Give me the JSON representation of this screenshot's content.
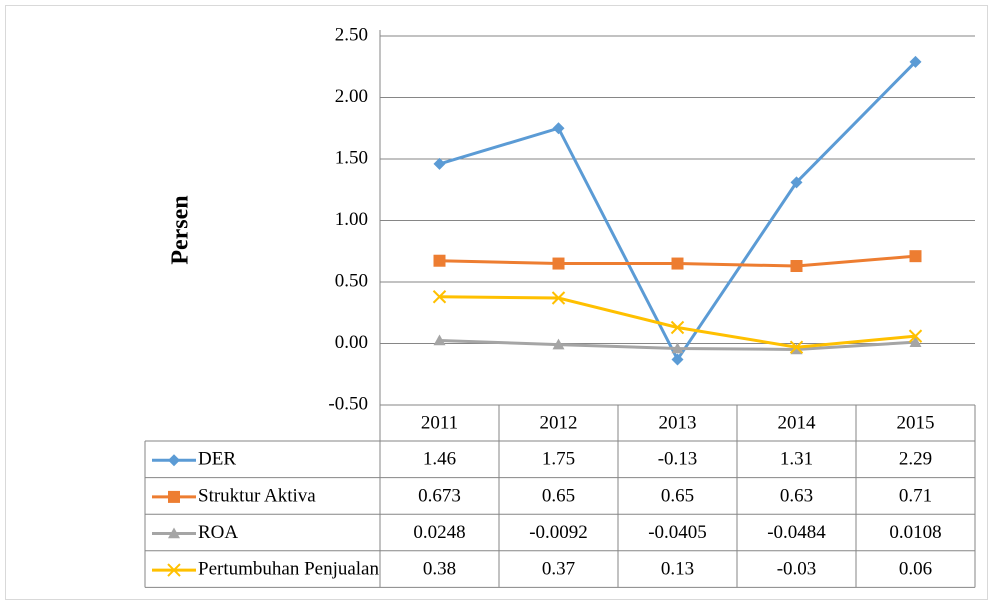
{
  "chart_data": {
    "type": "line",
    "y_label": "Persen",
    "categories": [
      "2011",
      "2012",
      "2013",
      "2014",
      "2015"
    ],
    "series": [
      {
        "name": "DER",
        "color": "#5b9bd5",
        "marker": "diamond",
        "values": [
          1.46,
          1.75,
          -0.13,
          1.31,
          2.29
        ]
      },
      {
        "name": "Struktur Aktiva",
        "color": "#ed7d31",
        "marker": "square",
        "values": [
          0.673,
          0.65,
          0.65,
          0.63,
          0.71
        ]
      },
      {
        "name": "ROA",
        "color": "#a5a5a5",
        "marker": "triangle",
        "values": [
          0.0248,
          -0.0092,
          -0.0405,
          -0.0484,
          0.0108
        ]
      },
      {
        "name": "Pertumbuhan Penjualan",
        "color": "#ffc000",
        "marker": "x",
        "values": [
          0.38,
          0.37,
          0.13,
          -0.03,
          0.06
        ]
      }
    ],
    "ylim": [
      -0.5,
      2.5
    ],
    "yticks": [
      {
        "value": -0.5,
        "label": "-0.50"
      },
      {
        "value": 0,
        "label": "0.00"
      },
      {
        "value": 0.5,
        "label": "0.50"
      },
      {
        "value": 1,
        "label": "1.00"
      },
      {
        "value": 1.5,
        "label": "1.50"
      },
      {
        "value": 2,
        "label": "2.00"
      },
      {
        "value": 2.5,
        "label": "2.50"
      }
    ],
    "grid": true,
    "data_table": true
  }
}
